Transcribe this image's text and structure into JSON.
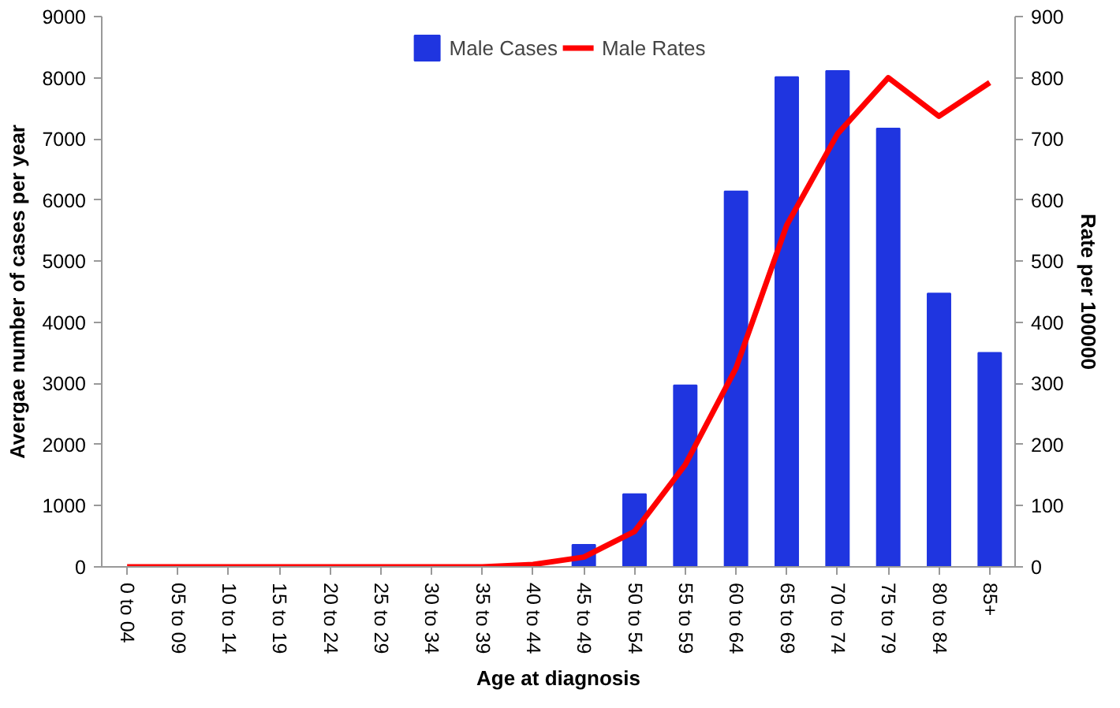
{
  "chart_data": {
    "type": "bar",
    "xlabel": "Age at diagnosis",
    "ylabel": "Avergae number of cases per year",
    "y2label": "Rate per 100000",
    "categories": [
      "0 to 04",
      "05 to 09",
      "10 to 14",
      "15 to 19",
      "20 to 24",
      "25 to 29",
      "30 to 34",
      "35 to 39",
      "40 to 44",
      "45 to 49",
      "50 to 54",
      "55 to 59",
      "60 to 64",
      "65 to 69",
      "70 to 74",
      "75 to 79",
      "80 to 84",
      "85+"
    ],
    "series": [
      {
        "name": "Male Cases",
        "color": "#1f35e0",
        "values": [
          null,
          0,
          0,
          0,
          0,
          0,
          0,
          0,
          0,
          360,
          1190,
          2970,
          6140,
          8010,
          8110,
          7170,
          4470,
          3500
        ]
      },
      {
        "name": "Male Rates",
        "type": "line",
        "axis": "y2",
        "color": "#ff0000",
        "values": [
          0,
          0,
          0,
          0,
          0,
          0,
          0,
          0,
          4,
          16,
          58,
          167,
          325,
          559,
          708,
          800,
          737,
          792
        ]
      }
    ],
    "ylim": [
      0,
      9000
    ],
    "yticks": [
      0,
      1000,
      2000,
      3000,
      4000,
      5000,
      6000,
      7000,
      8000,
      9000
    ],
    "y2lim": [
      0,
      900
    ],
    "y2ticks": [
      0,
      100,
      200,
      300,
      400,
      500,
      600,
      700,
      800,
      900
    ],
    "grid": false,
    "legend": "top",
    "marker": "none",
    "line_style": "solid"
  }
}
